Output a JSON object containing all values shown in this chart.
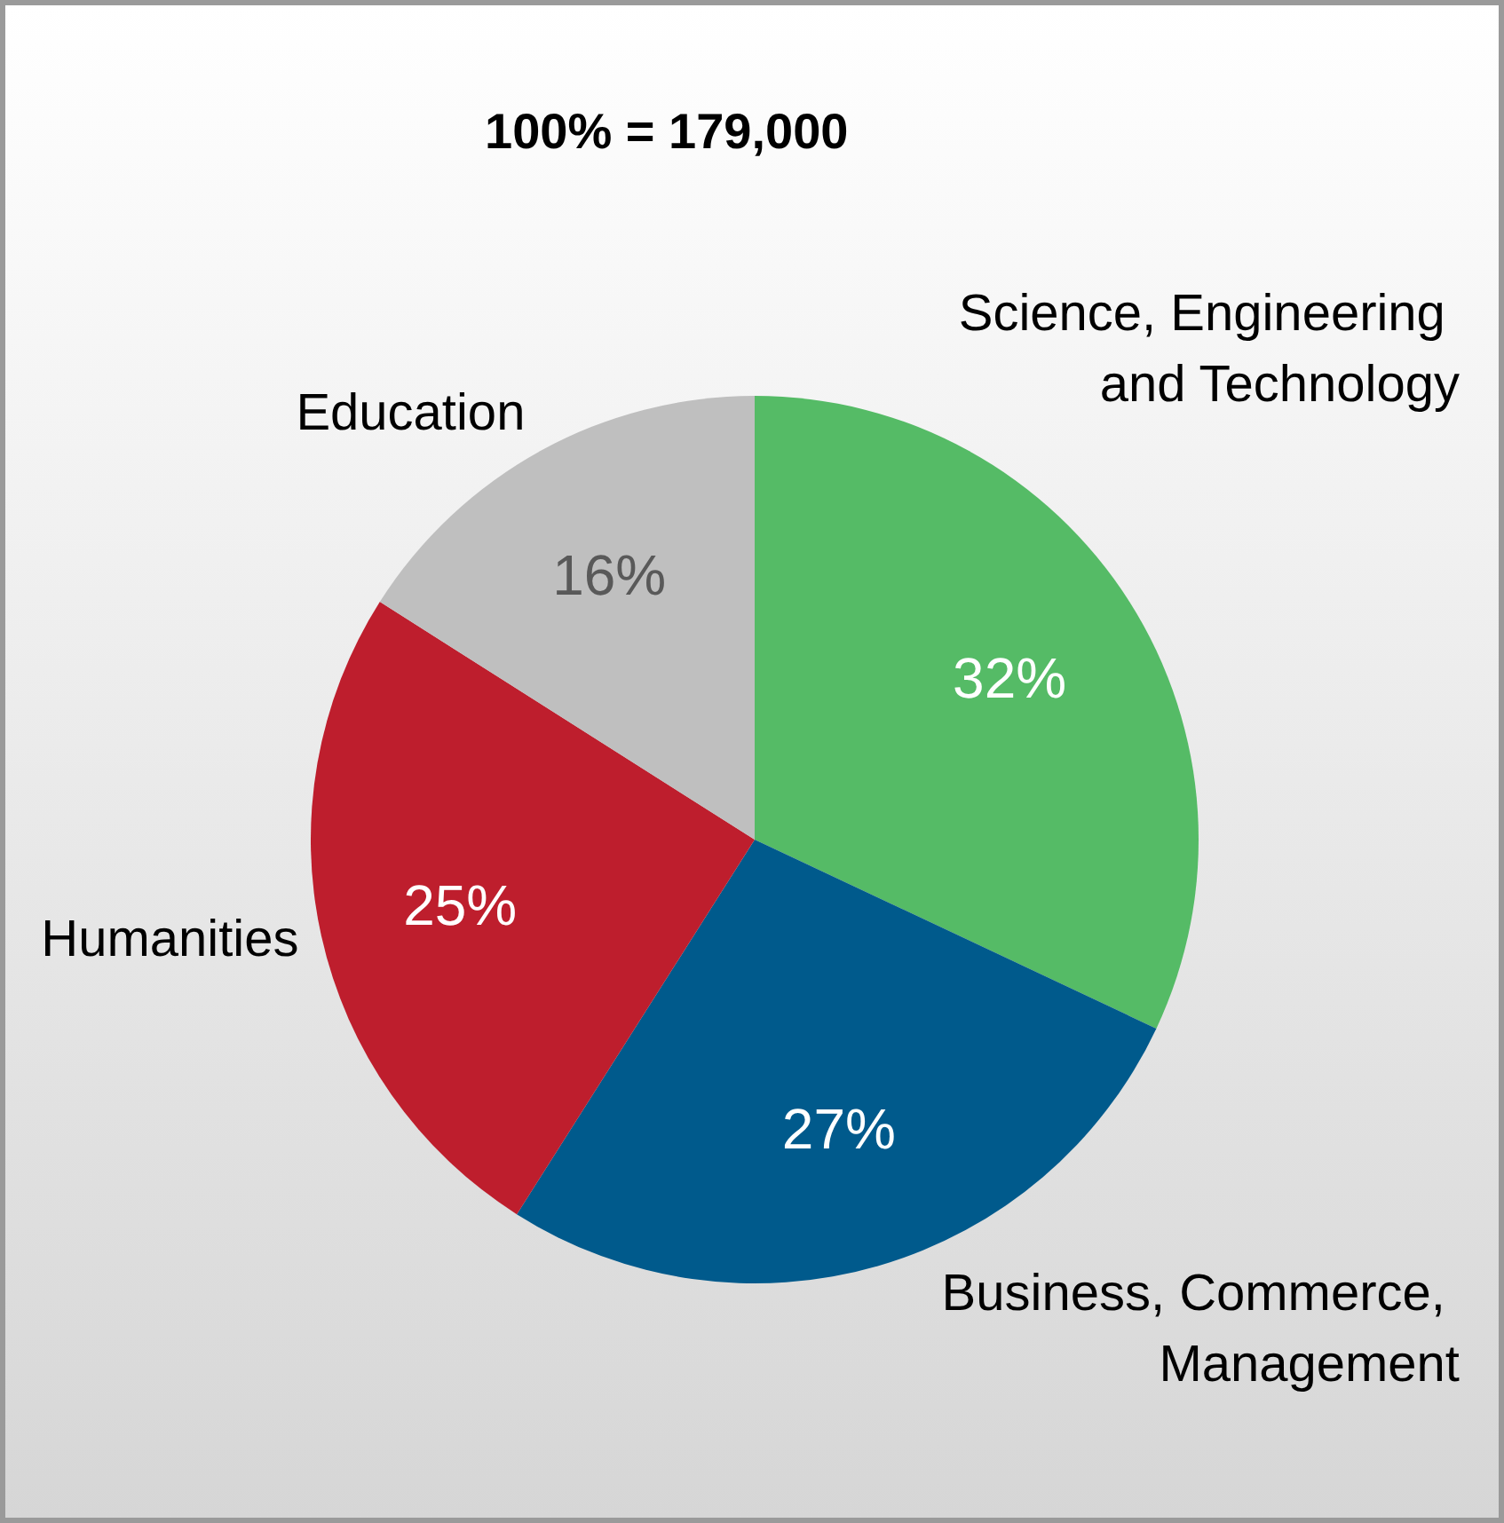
{
  "chart_data": {
    "type": "pie",
    "title": "100% = 179,000",
    "categories": [
      "Science, Engineering and Technology",
      "Business, Commerce, Management",
      "Humanities",
      "Education"
    ],
    "values": [
      32,
      27,
      25,
      16
    ],
    "colors": [
      "#55bb66",
      "#005a8c",
      "#be1e2d",
      "#bfbfbf"
    ],
    "value_labels": [
      "32%",
      "27%",
      "25%",
      "16%"
    ],
    "legend": false
  }
}
